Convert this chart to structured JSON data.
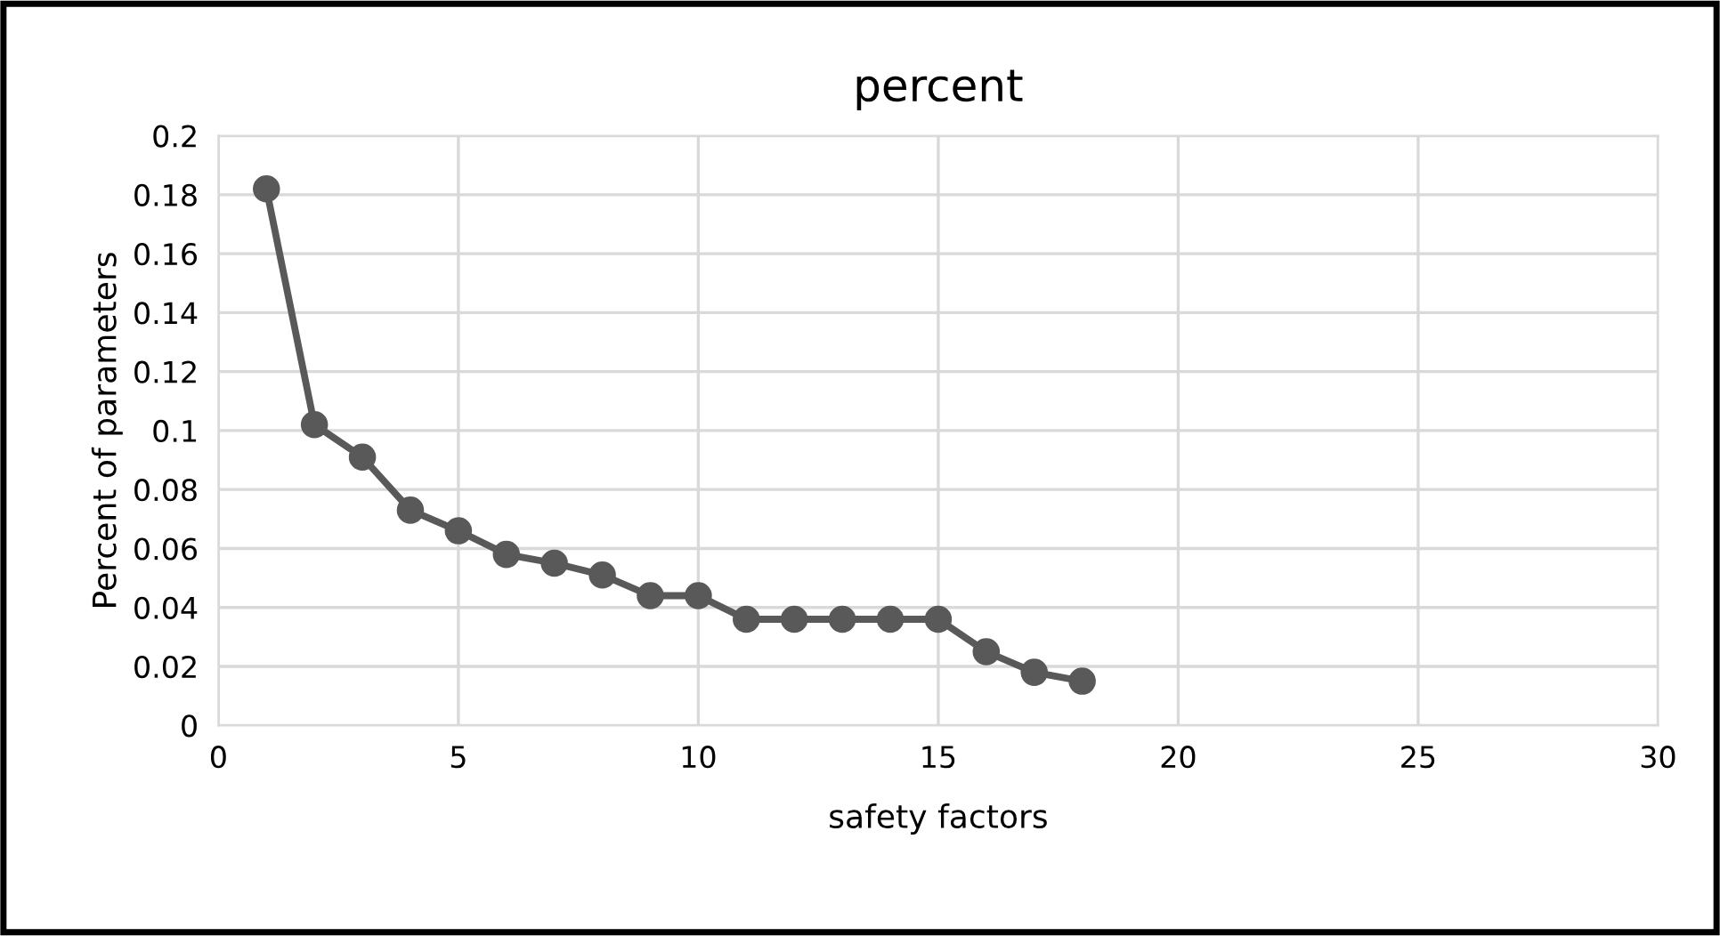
{
  "chart_data": {
    "type": "line",
    "title": "percent",
    "xlabel": "safety factors",
    "ylabel": "Percent of parameters",
    "x": [
      1,
      2,
      3,
      4,
      5,
      6,
      7,
      8,
      9,
      10,
      11,
      12,
      13,
      14,
      15,
      16,
      17,
      18
    ],
    "series": [
      {
        "color": "#595959",
        "values": [
          0.182,
          0.102,
          0.091,
          0.073,
          0.066,
          0.058,
          0.055,
          0.051,
          0.044,
          0.044,
          0.036,
          0.036,
          0.036,
          0.036,
          0.036,
          0.025,
          0.018,
          0.015
        ]
      }
    ],
    "xlim": [
      0,
      30
    ],
    "xticks": [
      0,
      5,
      10,
      15,
      20,
      25,
      30
    ],
    "ylim": [
      0,
      0.2
    ],
    "yticks": [
      0,
      0.02,
      0.04,
      0.06,
      0.08,
      0.1,
      0.12,
      0.14,
      0.16,
      0.18,
      0.2
    ],
    "grid": true,
    "marker": "circle",
    "line_style": "solid"
  }
}
